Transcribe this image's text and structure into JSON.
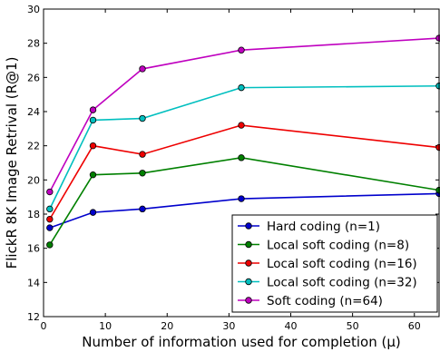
{
  "chart_data": {
    "type": "line",
    "title": "",
    "xlabel": "Number of information used for completion (μ)",
    "ylabel": "FlickR 8K Image Retrival (R@1)",
    "xlim": [
      0,
      64
    ],
    "ylim": [
      12,
      30
    ],
    "xticks": [
      0,
      10,
      20,
      30,
      40,
      50,
      60
    ],
    "yticks": [
      12,
      14,
      16,
      18,
      20,
      22,
      24,
      26,
      28,
      30
    ],
    "x": [
      1,
      8,
      16,
      32,
      64
    ],
    "grid": false,
    "legend_position": "lower-right",
    "series": [
      {
        "name": "Hard coding (n=1)",
        "color": "#0000cc",
        "values": [
          17.2,
          18.1,
          18.3,
          18.9,
          19.2
        ]
      },
      {
        "name": "Local soft coding (n=8)",
        "color": "#008000",
        "values": [
          16.2,
          20.3,
          20.4,
          21.3,
          19.4
        ]
      },
      {
        "name": "Local soft coding (n=16)",
        "color": "#ee0000",
        "values": [
          17.7,
          22.0,
          21.5,
          23.2,
          21.9
        ]
      },
      {
        "name": "Local soft coding (n=32)",
        "color": "#00bfbf",
        "values": [
          18.3,
          23.5,
          23.6,
          25.4,
          25.5
        ]
      },
      {
        "name": "Soft coding (n=64)",
        "color": "#bf00bf",
        "values": [
          19.3,
          24.1,
          26.5,
          27.6,
          28.3
        ]
      }
    ]
  }
}
